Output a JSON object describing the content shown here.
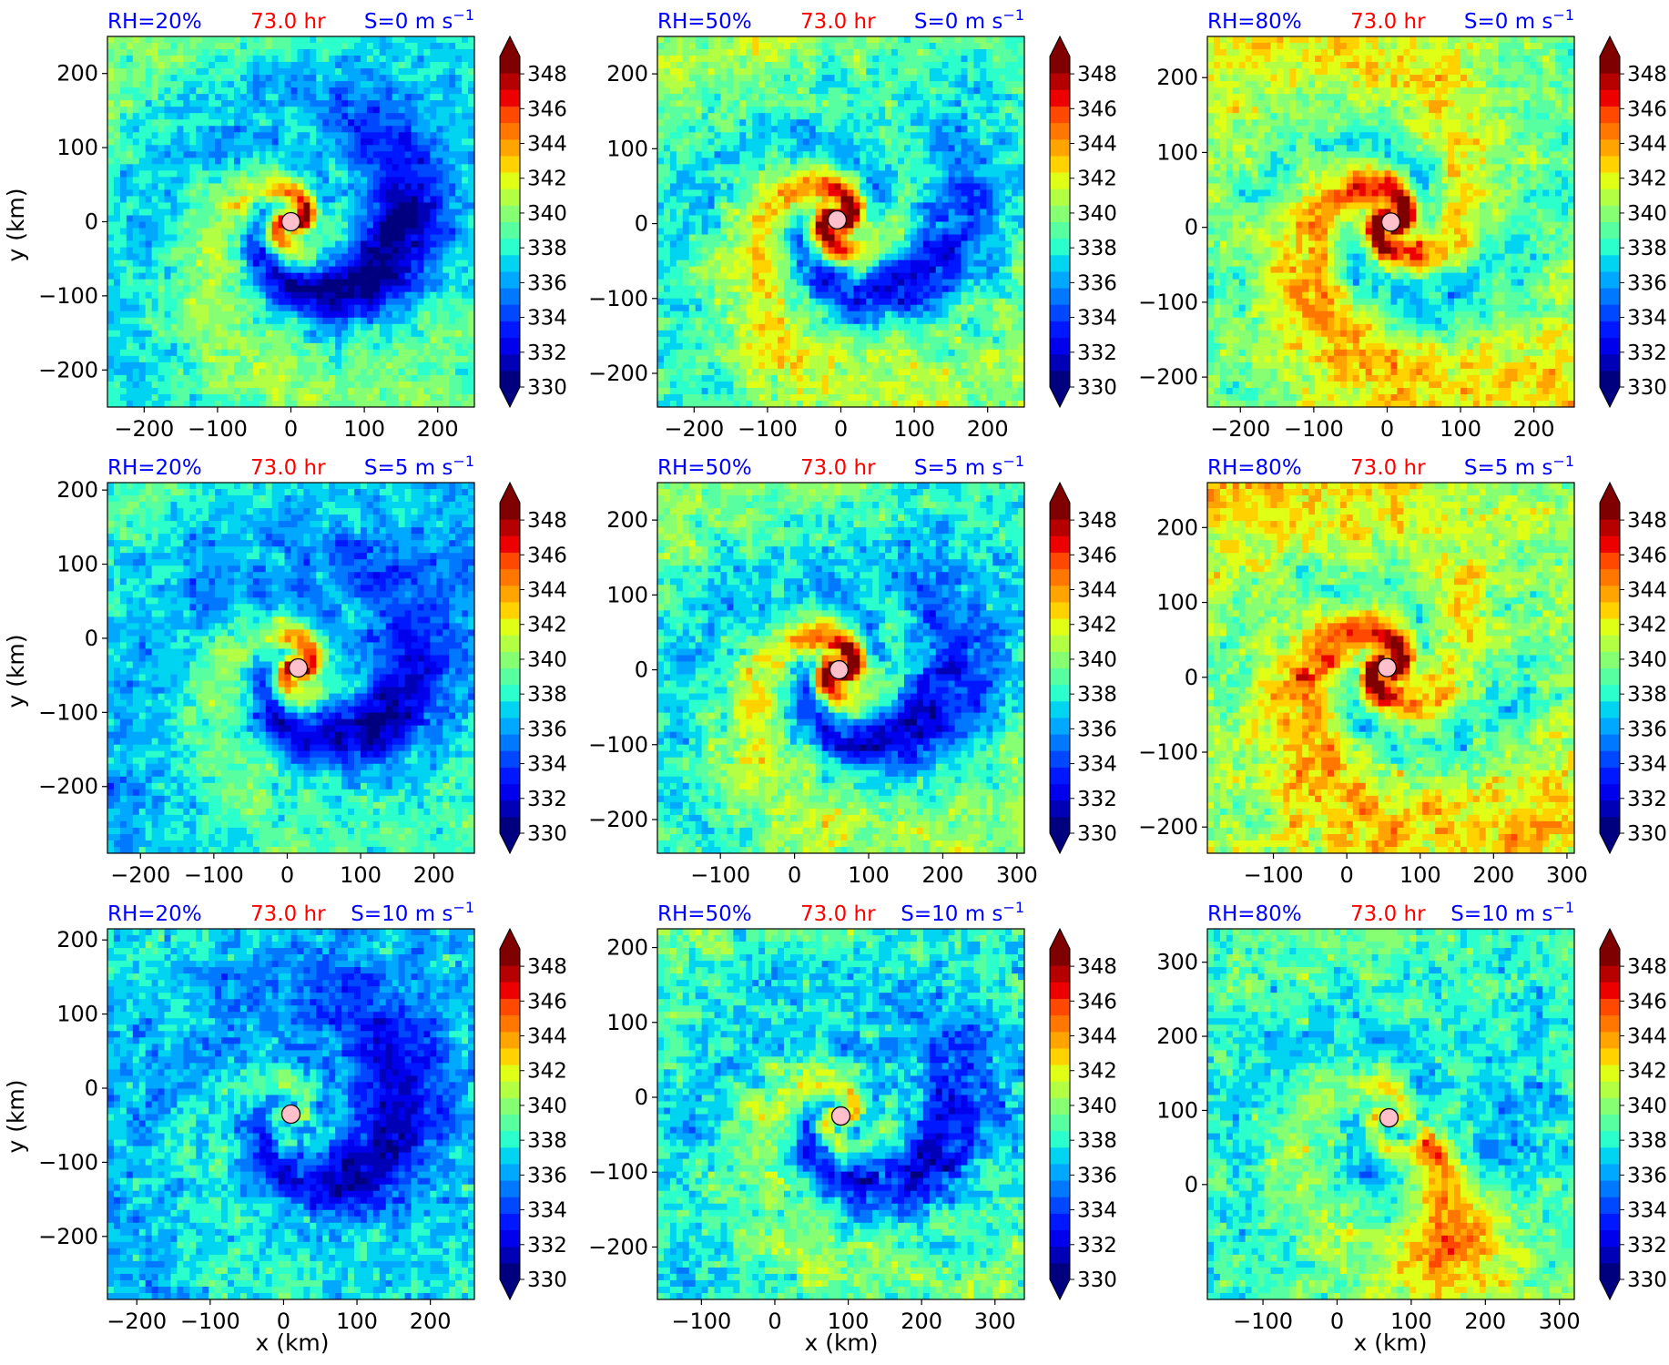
{
  "figure": {
    "x_axis_label": "x (km)",
    "y_axis_label": "y (km)",
    "time_label": "73.0 hr",
    "colors": {
      "title_rh": "#0000ff",
      "title_time": "#ff0000",
      "title_shear": "#0000ff",
      "center_marker": "#ffc0cb"
    }
  },
  "colorbar": {
    "ticks": [
      "330",
      "332",
      "334",
      "336",
      "338",
      "340",
      "342",
      "344",
      "346",
      "348"
    ],
    "range": [
      330,
      349
    ],
    "extend": "both",
    "colors": [
      "#00007f",
      "#0000b6",
      "#0000ed",
      "#0018ff",
      "#0048ff",
      "#0078ff",
      "#00a8ff",
      "#00d4f0",
      "#2bffcc",
      "#58ffa0",
      "#86ff72",
      "#b3ff44",
      "#e0ff17",
      "#ffd200",
      "#ffa400",
      "#ff7600",
      "#ff4800",
      "#ed0000",
      "#b60000",
      "#7f0000"
    ],
    "under_color": "#000080",
    "over_color": "#800000"
  },
  "chart_data": [
    {
      "type": "heatmap",
      "rh": "RH=20%",
      "shear": "S=0 m s",
      "shear_exp": "−1",
      "xlim": [
        -250,
        250
      ],
      "ylim": [
        -250,
        250
      ],
      "xticks": [
        "−200",
        "−100",
        "0",
        "100",
        "200"
      ],
      "yticks": [
        "−200",
        "−100",
        "0",
        "100",
        "200"
      ],
      "center": [
        0,
        0
      ],
      "pattern": {
        "base": 338.5,
        "core": 8,
        "spiral": 4,
        "dry": -8.5,
        "noise": 2.2
      }
    },
    {
      "type": "heatmap",
      "rh": "RH=50%",
      "shear": "S=0 m s",
      "shear_exp": "−1",
      "xlim": [
        -250,
        250
      ],
      "ylim": [
        -245,
        250
      ],
      "xticks": [
        "−200",
        "−100",
        "0",
        "100",
        "200"
      ],
      "yticks": [
        "−200",
        "−100",
        "0",
        "100",
        "200"
      ],
      "center": [
        -5,
        5
      ],
      "pattern": {
        "base": 339.5,
        "core": 11,
        "spiral": 5,
        "dry": -6,
        "noise": 2.5
      }
    },
    {
      "type": "heatmap",
      "rh": "RH=80%",
      "shear": "S=0 m s",
      "shear_exp": "−1",
      "xlim": [
        -245,
        255
      ],
      "ylim": [
        -240,
        255
      ],
      "xticks": [
        "−200",
        "−100",
        "0",
        "100",
        "200"
      ],
      "yticks": [
        "−200",
        "−100",
        "0",
        "100",
        "200"
      ],
      "center": [
        5,
        7
      ],
      "pattern": {
        "base": 341,
        "core": 9,
        "spiral": 5,
        "dry": -2,
        "noise": 2.5
      }
    },
    {
      "type": "heatmap",
      "rh": "RH=20%",
      "shear": "S=5 m s",
      "shear_exp": "−1",
      "xlim": [
        -245,
        255
      ],
      "ylim": [
        -290,
        210
      ],
      "xticks": [
        "−200",
        "−100",
        "0",
        "100",
        "200"
      ],
      "yticks": [
        "−200",
        "−100",
        "0",
        "100",
        "200"
      ],
      "center": [
        15,
        -40
      ],
      "pattern": {
        "base": 337.5,
        "core": 9,
        "spiral": 3.5,
        "dry": -6,
        "noise": 2.2
      }
    },
    {
      "type": "heatmap",
      "rh": "RH=50%",
      "shear": "S=5 m s",
      "shear_exp": "−1",
      "xlim": [
        -185,
        310
      ],
      "ylim": [
        -245,
        250
      ],
      "xticks": [
        "−100",
        "0",
        "100",
        "200",
        "300"
      ],
      "yticks": [
        "−200",
        "−100",
        "0",
        "100",
        "200"
      ],
      "center": [
        60,
        0
      ],
      "pattern": {
        "base": 339,
        "core": 11,
        "spiral": 4.5,
        "dry": -6.5,
        "noise": 2.6
      }
    },
    {
      "type": "heatmap",
      "rh": "RH=80%",
      "shear": "S=5 m s",
      "shear_exp": "−1",
      "xlim": [
        -190,
        310
      ],
      "ylim": [
        -235,
        260
      ],
      "xticks": [
        "−100",
        "0",
        "100",
        "200",
        "300"
      ],
      "yticks": [
        "−200",
        "−100",
        "0",
        "100",
        "200"
      ],
      "center": [
        55,
        13
      ],
      "pattern": {
        "base": 341.5,
        "core": 9,
        "spiral": 4.5,
        "dry": -2.5,
        "noise": 2.8
      }
    },
    {
      "type": "heatmap",
      "rh": "RH=20%",
      "shear": "S=10 m s",
      "shear_exp": "−1",
      "xlim": [
        -240,
        260
      ],
      "ylim": [
        -285,
        215
      ],
      "xticks": [
        "−200",
        "−100",
        "0",
        "100",
        "200"
      ],
      "yticks": [
        "−200",
        "−100",
        "0",
        "100",
        "200"
      ],
      "center": [
        10,
        -35
      ],
      "pattern": {
        "base": 337,
        "core": 2,
        "spiral": 2,
        "dry": -6,
        "noise": 2.5
      }
    },
    {
      "type": "heatmap",
      "rh": "RH=50%",
      "shear": "S=10 m s",
      "shear_exp": "−1",
      "xlim": [
        -160,
        340
      ],
      "ylim": [
        -270,
        225
      ],
      "xticks": [
        "−100",
        "0",
        "100",
        "200",
        "300"
      ],
      "yticks": [
        "−200",
        "−100",
        "0",
        "100",
        "200"
      ],
      "center": [
        90,
        -25
      ],
      "pattern": {
        "base": 338.5,
        "core": 3,
        "spiral": 3,
        "dry": -6,
        "noise": 2.8
      }
    },
    {
      "type": "heatmap",
      "rh": "RH=80%",
      "shear": "S=10 m s",
      "shear_exp": "−1",
      "xlim": [
        -175,
        320
      ],
      "ylim": [
        -155,
        345
      ],
      "xticks": [
        "−100",
        "0",
        "100",
        "200",
        "300"
      ],
      "yticks": [
        "0",
        "100",
        "200",
        "300"
      ],
      "center": [
        70,
        90
      ],
      "pattern": {
        "base": 338.5,
        "core": 3,
        "spiral": 2.5,
        "dry": -2,
        "noise": 2.5,
        "plume": 8
      }
    }
  ]
}
